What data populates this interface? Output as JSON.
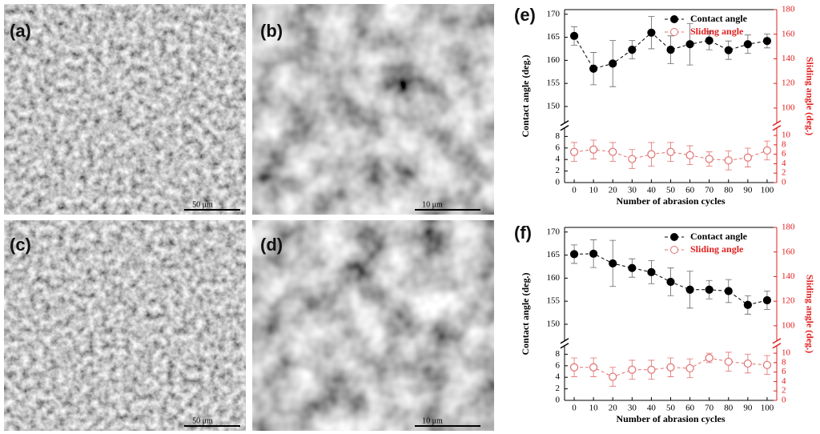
{
  "panels": [
    {
      "label": "(a)",
      "scale_bar": "50 μm"
    },
    {
      "label": "(b)",
      "scale_bar": "10 μm"
    },
    {
      "label": "(c)",
      "scale_bar": "50 μm"
    },
    {
      "label": "(d)",
      "scale_bar": "10 μm"
    }
  ],
  "chart_data": [
    {
      "type": "line",
      "panel_label": "(e)",
      "xlabel": "Number of abrasion cycles",
      "ylabel": "Contact angle (deg.)",
      "y2label": "Sliding angle (deg.)",
      "x": [
        0,
        10,
        20,
        30,
        40,
        50,
        60,
        70,
        80,
        90,
        100
      ],
      "xlim": [
        -5,
        105
      ],
      "xticks": [
        0,
        10,
        20,
        30,
        40,
        50,
        60,
        70,
        80,
        90,
        100
      ],
      "ylim": [
        0,
        171
      ],
      "ybreak": [
        9,
        147
      ],
      "yticks": [
        0,
        2,
        4,
        6,
        8,
        150,
        155,
        160,
        165,
        170
      ],
      "y2lim": [
        0,
        180
      ],
      "y2break": [
        11,
        90
      ],
      "y2ticks": [
        0,
        2,
        4,
        6,
        8,
        10,
        100,
        120,
        140,
        160,
        180
      ],
      "y2color": "#e02020",
      "legend": "upper right",
      "series": [
        {
          "name": "Contact angle",
          "color": "#000000",
          "marker": "filled",
          "axis": "y",
          "values": [
            165.3,
            158.2,
            159.3,
            162.3,
            166.0,
            162.3,
            163.5,
            164.3,
            162.2,
            163.5,
            164.2
          ],
          "errors": [
            2.0,
            3.5,
            5.0,
            2.0,
            3.5,
            3.0,
            4.5,
            2.0,
            2.0,
            2.0,
            1.5
          ]
        },
        {
          "name": "Sliding angle",
          "color": "#e07070",
          "marker": "open",
          "axis": "y2",
          "values": [
            6.5,
            7.0,
            6.5,
            5.0,
            6.0,
            6.5,
            5.8,
            5.0,
            4.7,
            5.3,
            6.8
          ],
          "errors": [
            2.0,
            2.0,
            2.0,
            2.0,
            2.5,
            2.0,
            2.0,
            1.5,
            2.0,
            2.0,
            2.0
          ]
        }
      ]
    },
    {
      "type": "line",
      "panel_label": "(f)",
      "xlabel": "Number of abrasion cycles",
      "ylabel": "Contact angle (deg.)",
      "y2label": "Sliding angle (deg.)",
      "x": [
        0,
        10,
        20,
        30,
        40,
        50,
        60,
        70,
        80,
        90,
        100
      ],
      "xlim": [
        -5,
        105
      ],
      "xticks": [
        0,
        10,
        20,
        30,
        40,
        50,
        60,
        70,
        80,
        90,
        100
      ],
      "ylim": [
        0,
        171
      ],
      "ybreak": [
        9,
        147
      ],
      "yticks": [
        0,
        2,
        4,
        6,
        8,
        150,
        155,
        160,
        165,
        170
      ],
      "y2lim": [
        0,
        180
      ],
      "y2break": [
        11,
        90
      ],
      "y2ticks": [
        0,
        2,
        4,
        6,
        8,
        10,
        100,
        120,
        140,
        160,
        180
      ],
      "y2color": "#e02020",
      "legend": "upper right",
      "series": [
        {
          "name": "Contact angle",
          "color": "#000000",
          "marker": "filled",
          "axis": "y",
          "values": [
            165.2,
            165.3,
            163.2,
            162.2,
            161.3,
            159.2,
            157.5,
            157.5,
            157.2,
            154.2,
            155.2
          ],
          "errors": [
            2.0,
            3.0,
            5.0,
            2.0,
            2.5,
            3.0,
            4.0,
            2.0,
            2.5,
            2.0,
            2.0
          ]
        },
        {
          "name": "Sliding angle",
          "color": "#e07070",
          "marker": "open",
          "axis": "y2",
          "values": [
            7.0,
            7.0,
            5.0,
            6.5,
            6.5,
            7.0,
            6.8,
            9.0,
            8.2,
            7.8,
            7.5
          ],
          "errors": [
            2.0,
            2.0,
            2.0,
            2.0,
            2.0,
            2.0,
            2.0,
            1.0,
            2.0,
            2.0,
            2.0
          ]
        }
      ]
    }
  ]
}
